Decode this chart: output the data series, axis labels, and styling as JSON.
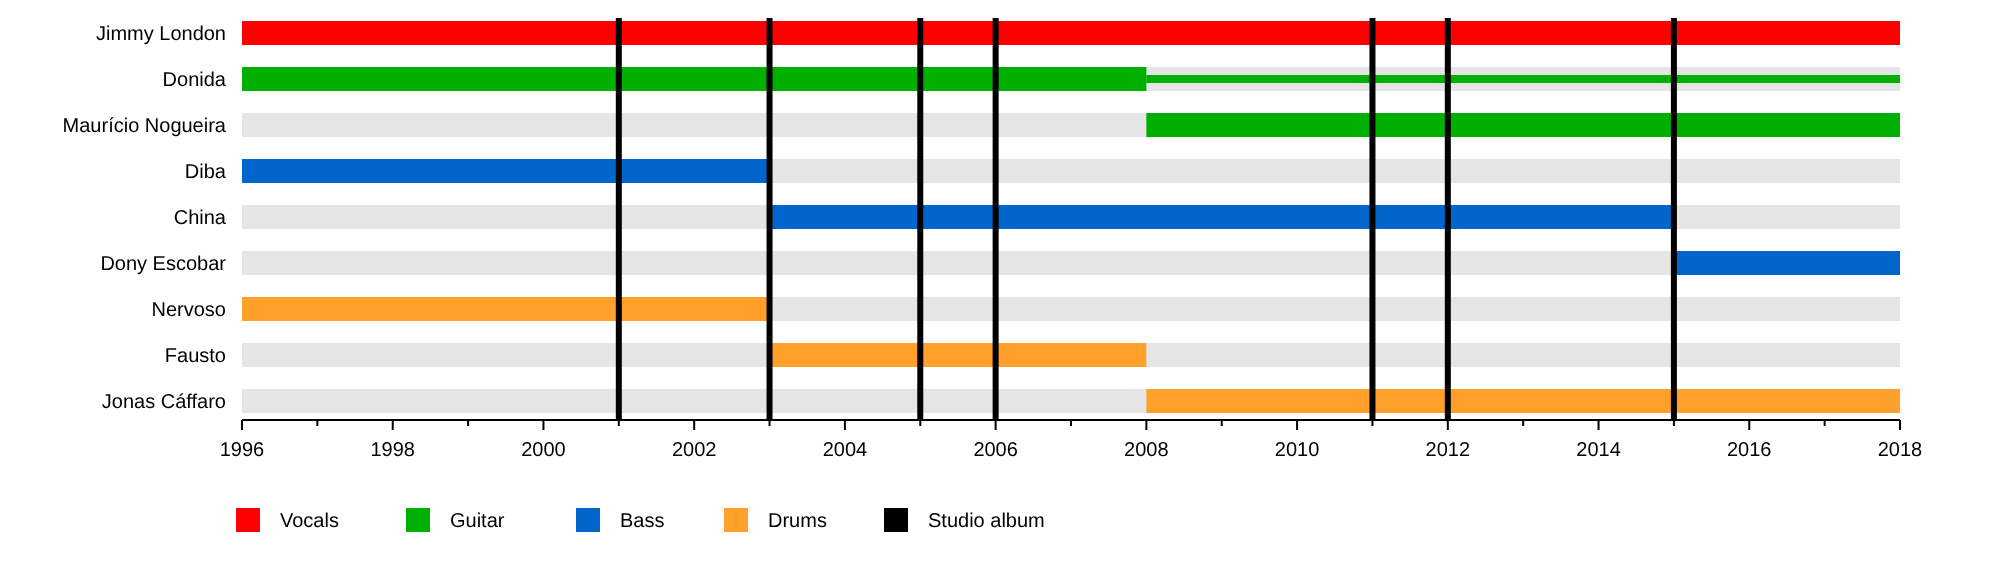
{
  "chart_data": {
    "type": "bar",
    "orientation": "horizontal",
    "categories": [
      "Jimmy London",
      "Donida",
      "Maurício Nogueira",
      "Diba",
      "China",
      "Dony Escobar",
      "Nervoso",
      "Fausto",
      "Jonas Cáffaro"
    ],
    "series": [
      {
        "name": "Vocals",
        "color": "#ff0000",
        "base": [
          1996,
          null,
          null,
          null,
          null,
          null,
          null,
          null,
          null
        ],
        "values": [
          22,
          null,
          null,
          null,
          null,
          null,
          null,
          null,
          null
        ]
      },
      {
        "name": "Guitar",
        "color": "#00b000",
        "base": [
          null,
          1996,
          2008,
          null,
          null,
          null,
          null,
          null,
          null
        ],
        "values": [
          null,
          12,
          10,
          null,
          null,
          null,
          null,
          null,
          null
        ]
      },
      {
        "color": "#00b000",
        "base": [
          null,
          2008,
          null,
          null,
          null,
          null,
          null,
          null,
          null
        ],
        "values": [
          null,
          10,
          null,
          null,
          null,
          null,
          null,
          null,
          null
        ]
      },
      {
        "name": "Bass",
        "color": "#0066cc",
        "base": [
          null,
          null,
          null,
          1996,
          2003,
          2015,
          null,
          null,
          null
        ],
        "values": [
          null,
          null,
          null,
          7,
          12,
          3,
          null,
          null,
          null
        ]
      },
      {
        "name": "Drums",
        "color": "#ffa02a",
        "base": [
          null,
          null,
          null,
          null,
          null,
          null,
          1996,
          2003,
          2008
        ],
        "values": [
          null,
          null,
          null,
          null,
          null,
          null,
          7,
          5,
          10
        ]
      }
    ],
    "ref_lines": [
      {
        "axis": "x",
        "value": 2001,
        "label": "Studio album",
        "color": "#000000"
      },
      {
        "axis": "x",
        "value": 2003,
        "color": "#000000"
      },
      {
        "axis": "x",
        "value": 2005,
        "color": "#000000"
      },
      {
        "axis": "x",
        "value": 2006,
        "color": "#000000"
      },
      {
        "axis": "x",
        "value": 2011,
        "color": "#000000"
      },
      {
        "axis": "x",
        "value": 2012,
        "color": "#000000"
      },
      {
        "axis": "x",
        "value": 2015,
        "color": "#000000"
      }
    ],
    "xlim": [
      1996,
      2018
    ],
    "xticks": [
      1996,
      {
        "value": 1997,
        "label": null
      },
      1998,
      {
        "value": 1999,
        "label": null
      },
      2000,
      {
        "value": 2001,
        "label": null
      },
      2002,
      {
        "value": 2003,
        "label": null
      },
      2004,
      {
        "value": 2005,
        "label": null
      },
      2006,
      {
        "value": 2007,
        "label": null
      },
      2008,
      {
        "value": 2009,
        "label": null
      },
      2010,
      {
        "value": 2011,
        "label": null
      },
      2012,
      {
        "value": 2013,
        "label": null
      },
      2014,
      {
        "value": 2015,
        "label": null
      },
      2016,
      {
        "value": 2017,
        "label": null
      },
      2018
    ],
    "grid": "y",
    "legend": "bottom"
  }
}
